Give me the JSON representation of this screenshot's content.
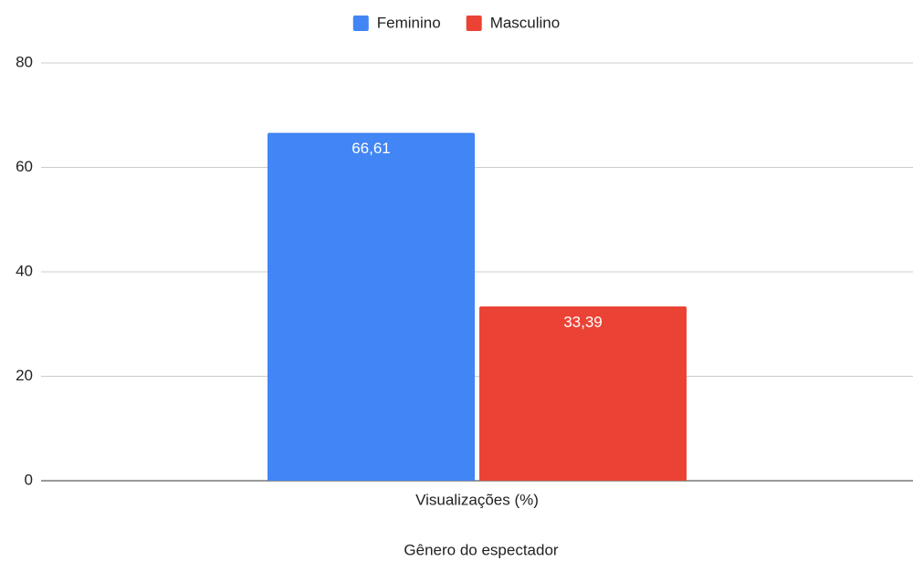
{
  "chart_data": {
    "type": "bar",
    "categories": [
      "Visualizações (%)"
    ],
    "x_label": "Gênero do espectador",
    "series": [
      {
        "name": "Feminino",
        "color": "#4285f4",
        "values": [
          66.61
        ],
        "value_labels": [
          "66,61"
        ]
      },
      {
        "name": "Masculino",
        "color": "#ea4335",
        "values": [
          33.39
        ],
        "value_labels": [
          "33,39"
        ]
      }
    ],
    "ylim": [
      0,
      80
    ],
    "yticks": [
      0,
      20,
      40,
      60,
      80
    ],
    "grid": true,
    "legend": "top"
  }
}
